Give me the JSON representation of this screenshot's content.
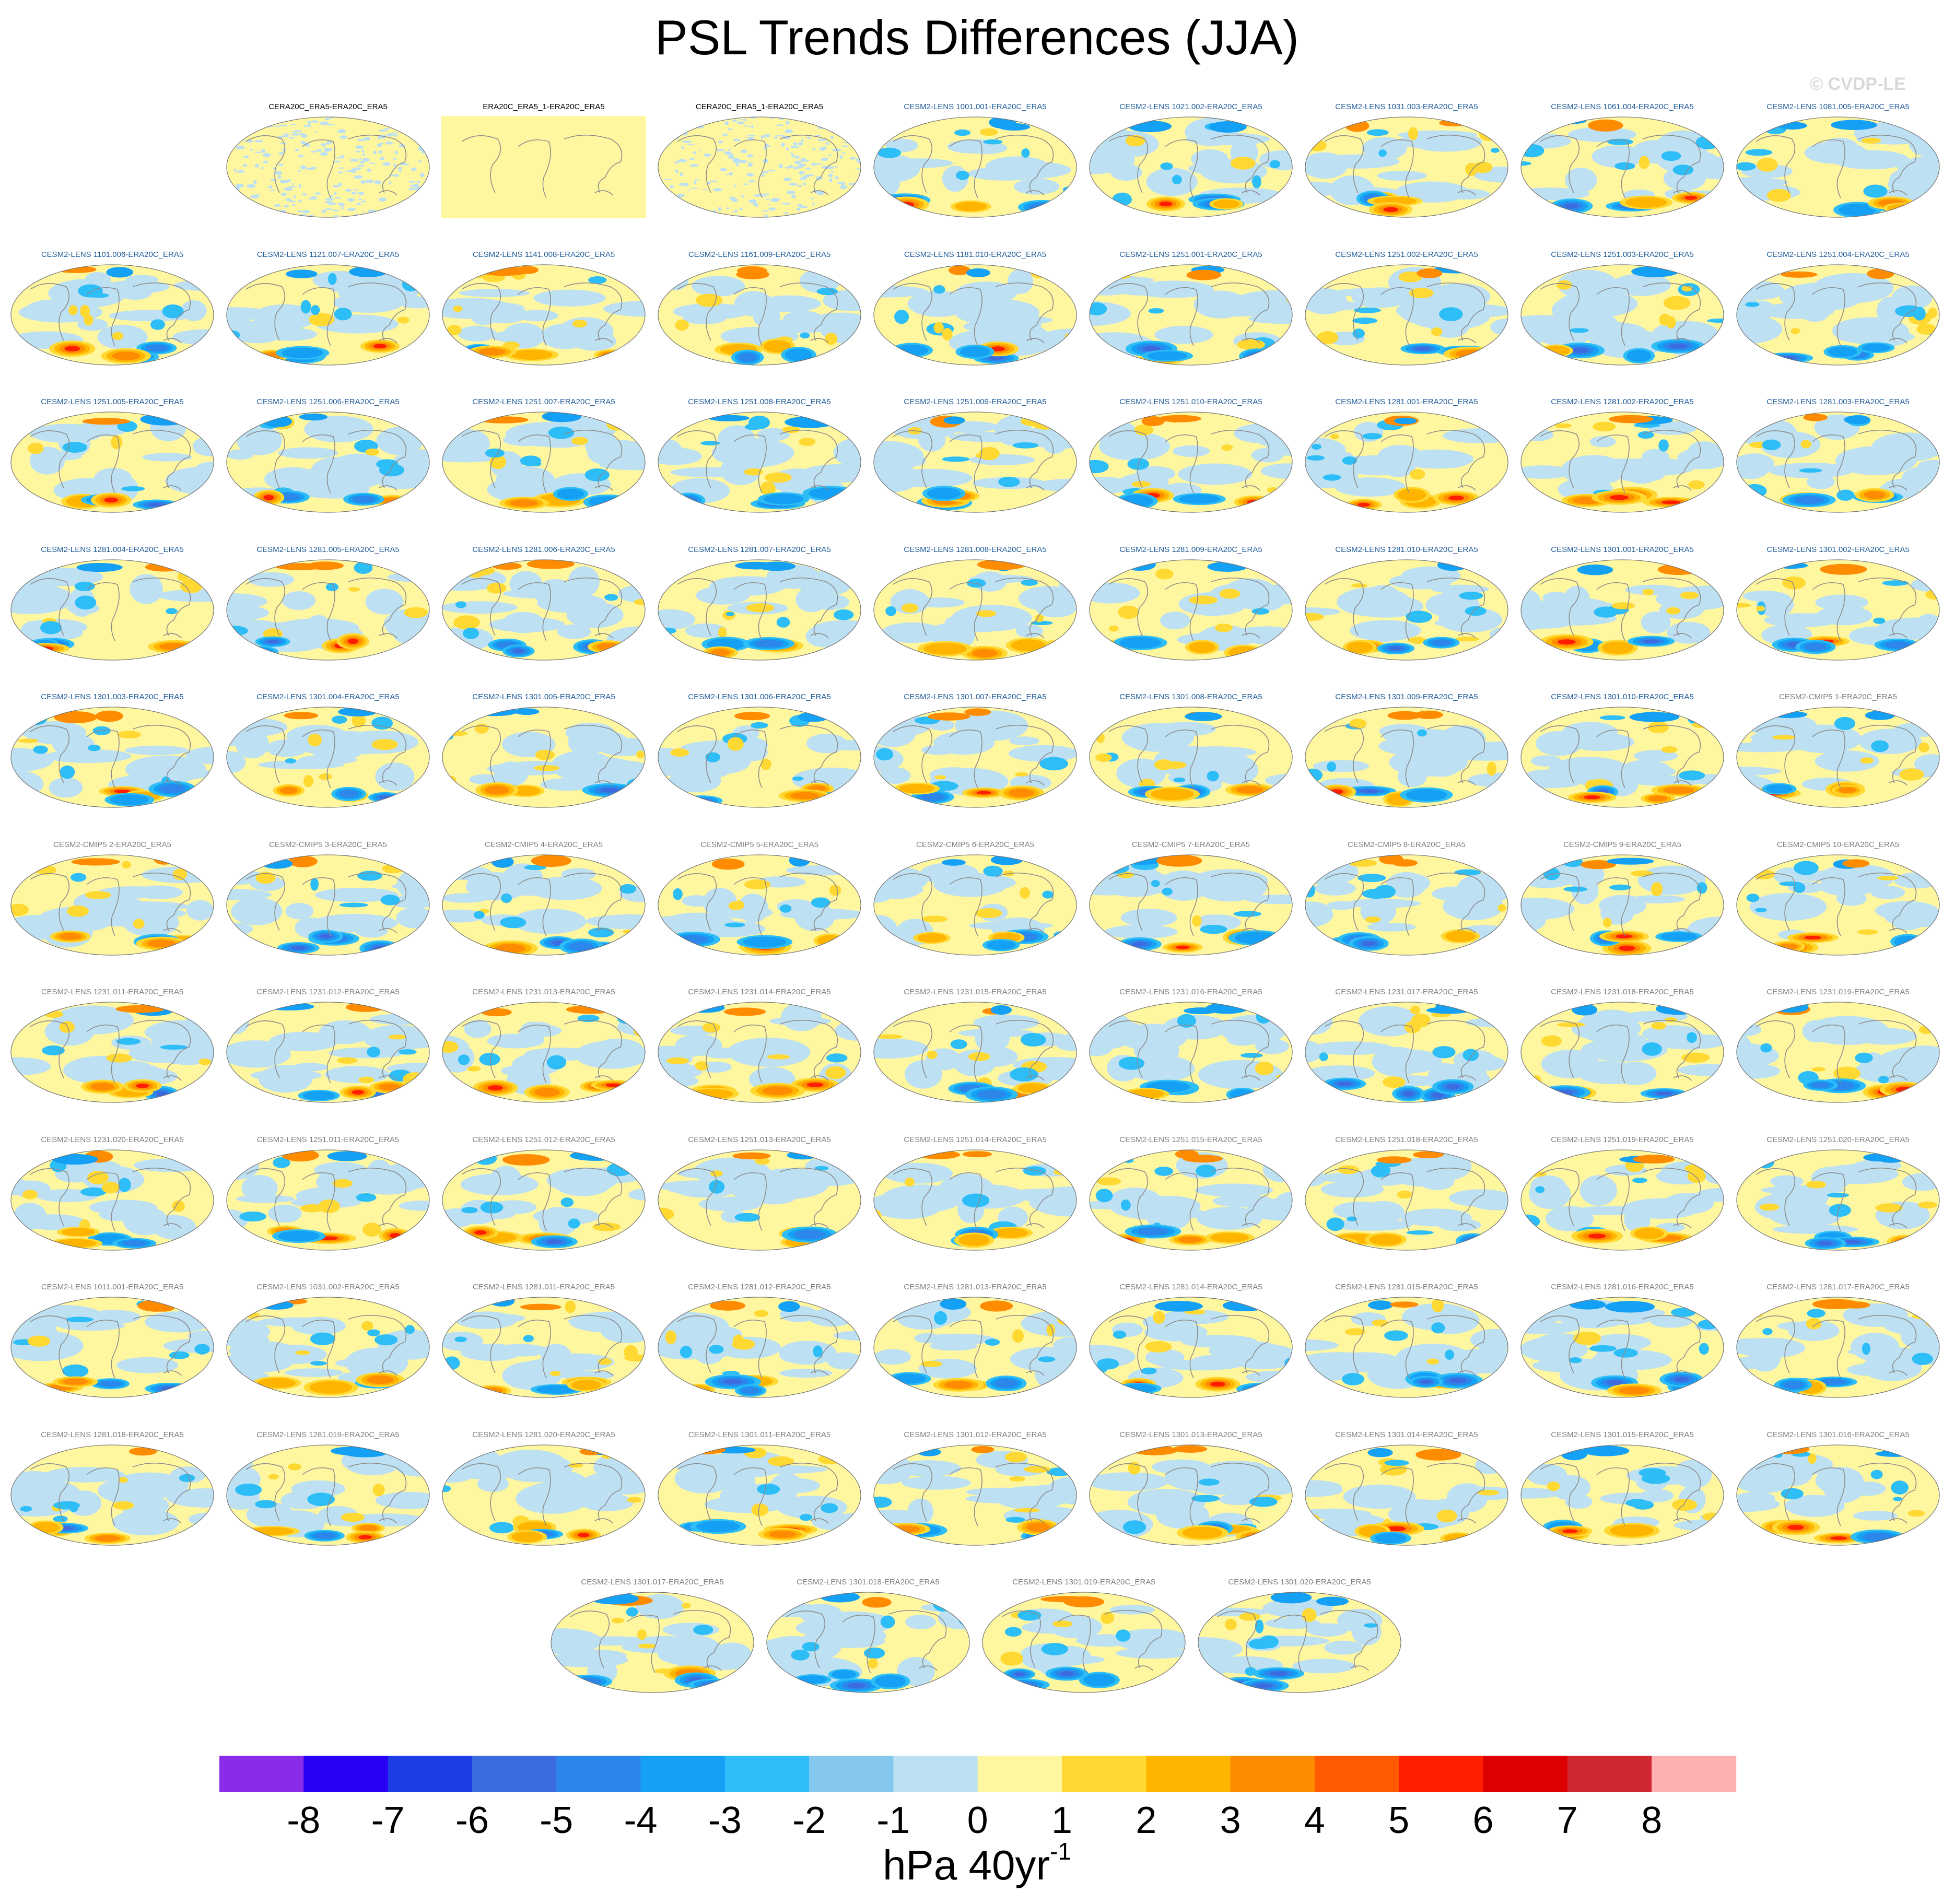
{
  "title": "PSL Trends Differences (JJA)",
  "watermark": "© CVDP-LE",
  "units": {
    "base": "hPa 40yr",
    "superscript": "-1"
  },
  "colorbar": {
    "labels": [
      "-8",
      "-7",
      "-6",
      "-5",
      "-4",
      "-3",
      "-2",
      "-1",
      "0",
      "1",
      "2",
      "3",
      "4",
      "5",
      "6",
      "7",
      "8"
    ],
    "colors": [
      "#8a2be8",
      "#2a00f5",
      "#1e3ce6",
      "#3c6be0",
      "#2d86ea",
      "#14a0f5",
      "#2dbdf7",
      "#85c8ee",
      "#bde0f2",
      "#fff6a0",
      "#ffd832",
      "#ffb400",
      "#ff8c00",
      "#ff5a00",
      "#ff1e00",
      "#dc0000",
      "#d02832",
      "#ffb0b0"
    ]
  },
  "title_colors": {
    "obs": "#000000",
    "lens_a": "#1f5c99",
    "other": "#7f7f7f"
  },
  "chart_data": {
    "type": "heatmap",
    "title": "PSL Trends Differences (JJA)",
    "colorbar_label": "hPa 40yr-1",
    "levels": [
      -8,
      -7,
      -6,
      -5,
      -4,
      -3,
      -2,
      -1,
      0,
      1,
      2,
      3,
      4,
      5,
      6,
      7,
      8
    ],
    "projection": "Robinson (global)",
    "panels": [
      {
        "title": "CERA20C_ERA5-ERA20C_ERA5",
        "group": "obs",
        "style": "speckle"
      },
      {
        "title": "ERA20C_ERA5_1-ERA20C_ERA5",
        "group": "obs",
        "style": "flat"
      },
      {
        "title": "CERA20C_ERA5_1-ERA20C_ERA5",
        "group": "obs",
        "style": "speckle"
      },
      {
        "title": "CESM2-LENS 1001.001-ERA20C_ERA5",
        "group": "lens_a"
      },
      {
        "title": "CESM2-LENS 1021.002-ERA20C_ERA5",
        "group": "lens_a"
      },
      {
        "title": "CESM2-LENS 1031.003-ERA20C_ERA5",
        "group": "lens_a"
      },
      {
        "title": "CESM2-LENS 1061.004-ERA20C_ERA5",
        "group": "lens_a"
      },
      {
        "title": "CESM2-LENS 1081.005-ERA20C_ERA5",
        "group": "lens_a"
      },
      {
        "title": "CESM2-LENS 1101.006-ERA20C_ERA5",
        "group": "lens_a"
      },
      {
        "title": "CESM2-LENS 1121.007-ERA20C_ERA5",
        "group": "lens_a"
      },
      {
        "title": "CESM2-LENS 1141.008-ERA20C_ERA5",
        "group": "lens_a"
      },
      {
        "title": "CESM2-LENS 1161.009-ERA20C_ERA5",
        "group": "lens_a"
      },
      {
        "title": "CESM2-LENS 1181.010-ERA20C_ERA5",
        "group": "lens_a"
      },
      {
        "title": "CESM2-LENS 1251.001-ERA20C_ERA5",
        "group": "lens_a"
      },
      {
        "title": "CESM2-LENS 1251.002-ERA20C_ERA5",
        "group": "lens_a"
      },
      {
        "title": "CESM2-LENS 1251.003-ERA20C_ERA5",
        "group": "lens_a"
      },
      {
        "title": "CESM2-LENS 1251.004-ERA20C_ERA5",
        "group": "lens_a"
      },
      {
        "title": "CESM2-LENS 1251.005-ERA20C_ERA5",
        "group": "lens_a"
      },
      {
        "title": "CESM2-LENS 1251.006-ERA20C_ERA5",
        "group": "lens_a"
      },
      {
        "title": "CESM2-LENS 1251.007-ERA20C_ERA5",
        "group": "lens_a"
      },
      {
        "title": "CESM2-LENS 1251.008-ERA20C_ERA5",
        "group": "lens_a"
      },
      {
        "title": "CESM2-LENS 1251.009-ERA20C_ERA5",
        "group": "lens_a"
      },
      {
        "title": "CESM2-LENS 1251.010-ERA20C_ERA5",
        "group": "lens_a"
      },
      {
        "title": "CESM2-LENS 1281.001-ERA20C_ERA5",
        "group": "lens_a"
      },
      {
        "title": "CESM2-LENS 1281.002-ERA20C_ERA5",
        "group": "lens_a"
      },
      {
        "title": "CESM2-LENS 1281.003-ERA20C_ERA5",
        "group": "lens_a"
      },
      {
        "title": "CESM2-LENS 1281.004-ERA20C_ERA5",
        "group": "lens_a"
      },
      {
        "title": "CESM2-LENS 1281.005-ERA20C_ERA5",
        "group": "lens_a"
      },
      {
        "title": "CESM2-LENS 1281.006-ERA20C_ERA5",
        "group": "lens_a"
      },
      {
        "title": "CESM2-LENS 1281.007-ERA20C_ERA5",
        "group": "lens_a"
      },
      {
        "title": "CESM2-LENS 1281.008-ERA20C_ERA5",
        "group": "lens_a"
      },
      {
        "title": "CESM2-LENS 1281.009-ERA20C_ERA5",
        "group": "lens_a"
      },
      {
        "title": "CESM2-LENS 1281.010-ERA20C_ERA5",
        "group": "lens_a"
      },
      {
        "title": "CESM2-LENS 1301.001-ERA20C_ERA5",
        "group": "lens_a"
      },
      {
        "title": "CESM2-LENS 1301.002-ERA20C_ERA5",
        "group": "lens_a"
      },
      {
        "title": "CESM2-LENS 1301.003-ERA20C_ERA5",
        "group": "lens_a"
      },
      {
        "title": "CESM2-LENS 1301.004-ERA20C_ERA5",
        "group": "lens_a"
      },
      {
        "title": "CESM2-LENS 1301.005-ERA20C_ERA5",
        "group": "lens_a"
      },
      {
        "title": "CESM2-LENS 1301.006-ERA20C_ERA5",
        "group": "lens_a"
      },
      {
        "title": "CESM2-LENS 1301.007-ERA20C_ERA5",
        "group": "lens_a"
      },
      {
        "title": "CESM2-LENS 1301.008-ERA20C_ERA5",
        "group": "lens_a"
      },
      {
        "title": "CESM2-LENS 1301.009-ERA20C_ERA5",
        "group": "lens_a"
      },
      {
        "title": "CESM2-LENS 1301.010-ERA20C_ERA5",
        "group": "lens_a"
      },
      {
        "title": "CESM2-CMIP5 1-ERA20C_ERA5",
        "group": "other"
      },
      {
        "title": "CESM2-CMIP5 2-ERA20C_ERA5",
        "group": "other"
      },
      {
        "title": "CESM2-CMIP5 3-ERA20C_ERA5",
        "group": "other"
      },
      {
        "title": "CESM2-CMIP5 4-ERA20C_ERA5",
        "group": "other"
      },
      {
        "title": "CESM2-CMIP5 5-ERA20C_ERA5",
        "group": "other"
      },
      {
        "title": "CESM2-CMIP5 6-ERA20C_ERA5",
        "group": "other"
      },
      {
        "title": "CESM2-CMIP5 7-ERA20C_ERA5",
        "group": "other"
      },
      {
        "title": "CESM2-CMIP5 8-ERA20C_ERA5",
        "group": "other"
      },
      {
        "title": "CESM2-CMIP5 9-ERA20C_ERA5",
        "group": "other"
      },
      {
        "title": "CESM2-CMIP5 10-ERA20C_ERA5",
        "group": "other"
      },
      {
        "title": "CESM2-LENS 1231.011-ERA20C_ERA5",
        "group": "other"
      },
      {
        "title": "CESM2-LENS 1231.012-ERA20C_ERA5",
        "group": "other"
      },
      {
        "title": "CESM2-LENS 1231.013-ERA20C_ERA5",
        "group": "other"
      },
      {
        "title": "CESM2-LENS 1231.014-ERA20C_ERA5",
        "group": "other"
      },
      {
        "title": "CESM2-LENS 1231.015-ERA20C_ERA5",
        "group": "other"
      },
      {
        "title": "CESM2-LENS 1231.016-ERA20C_ERA5",
        "group": "other"
      },
      {
        "title": "CESM2-LENS 1231.017-ERA20C_ERA5",
        "group": "other"
      },
      {
        "title": "CESM2-LENS 1231.018-ERA20C_ERA5",
        "group": "other"
      },
      {
        "title": "CESM2-LENS 1231.019-ERA20C_ERA5",
        "group": "other"
      },
      {
        "title": "CESM2-LENS 1231.020-ERA20C_ERA5",
        "group": "other"
      },
      {
        "title": "CESM2-LENS 1251.011-ERA20C_ERA5",
        "group": "other"
      },
      {
        "title": "CESM2-LENS 1251.012-ERA20C_ERA5",
        "group": "other"
      },
      {
        "title": "CESM2-LENS 1251.013-ERA20C_ERA5",
        "group": "other"
      },
      {
        "title": "CESM2-LENS 1251.014-ERA20C_ERA5",
        "group": "other"
      },
      {
        "title": "CESM2-LENS 1251.015-ERA20C_ERA5",
        "group": "other"
      },
      {
        "title": "CESM2-LENS 1251.018-ERA20C_ERA5",
        "group": "other"
      },
      {
        "title": "CESM2-LENS 1251.019-ERA20C_ERA5",
        "group": "other"
      },
      {
        "title": "CESM2-LENS 1251.020-ERA20C_ERA5",
        "group": "other"
      },
      {
        "title": "CESM2-LENS 1011.001-ERA20C_ERA5",
        "group": "other"
      },
      {
        "title": "CESM2-LENS 1031.002-ERA20C_ERA5",
        "group": "other"
      },
      {
        "title": "CESM2-LENS 1281.011-ERA20C_ERA5",
        "group": "other"
      },
      {
        "title": "CESM2-LENS 1281.012-ERA20C_ERA5",
        "group": "other"
      },
      {
        "title": "CESM2-LENS 1281.013-ERA20C_ERA5",
        "group": "other"
      },
      {
        "title": "CESM2-LENS 1281.014-ERA20C_ERA5",
        "group": "other"
      },
      {
        "title": "CESM2-LENS 1281.015-ERA20C_ERA5",
        "group": "other"
      },
      {
        "title": "CESM2-LENS 1281.016-ERA20C_ERA5",
        "group": "other"
      },
      {
        "title": "CESM2-LENS 1281.017-ERA20C_ERA5",
        "group": "other"
      },
      {
        "title": "CESM2-LENS 1281.018-ERA20C_ERA5",
        "group": "other"
      },
      {
        "title": "CESM2-LENS 1281.019-ERA20C_ERA5",
        "group": "other"
      },
      {
        "title": "CESM2-LENS 1281.020-ERA20C_ERA5",
        "group": "other"
      },
      {
        "title": "CESM2-LENS 1301.011-ERA20C_ERA5",
        "group": "other"
      },
      {
        "title": "CESM2-LENS 1301.012-ERA20C_ERA5",
        "group": "other"
      },
      {
        "title": "CESM2-LENS 1301.013-ERA20C_ERA5",
        "group": "other"
      },
      {
        "title": "CESM2-LENS 1301.014-ERA20C_ERA5",
        "group": "other"
      },
      {
        "title": "CESM2-LENS 1301.015-ERA20C_ERA5",
        "group": "other"
      },
      {
        "title": "CESM2-LENS 1301.016-ERA20C_ERA5",
        "group": "other"
      },
      {
        "title": "CESM2-LENS 1301.017-ERA20C_ERA5",
        "group": "other"
      },
      {
        "title": "CESM2-LENS 1301.018-ERA20C_ERA5",
        "group": "other"
      },
      {
        "title": "CESM2-LENS 1301.019-ERA20C_ERA5",
        "group": "other"
      },
      {
        "title": "CESM2-LENS 1301.020-ERA20C_ERA5",
        "group": "other"
      }
    ]
  }
}
